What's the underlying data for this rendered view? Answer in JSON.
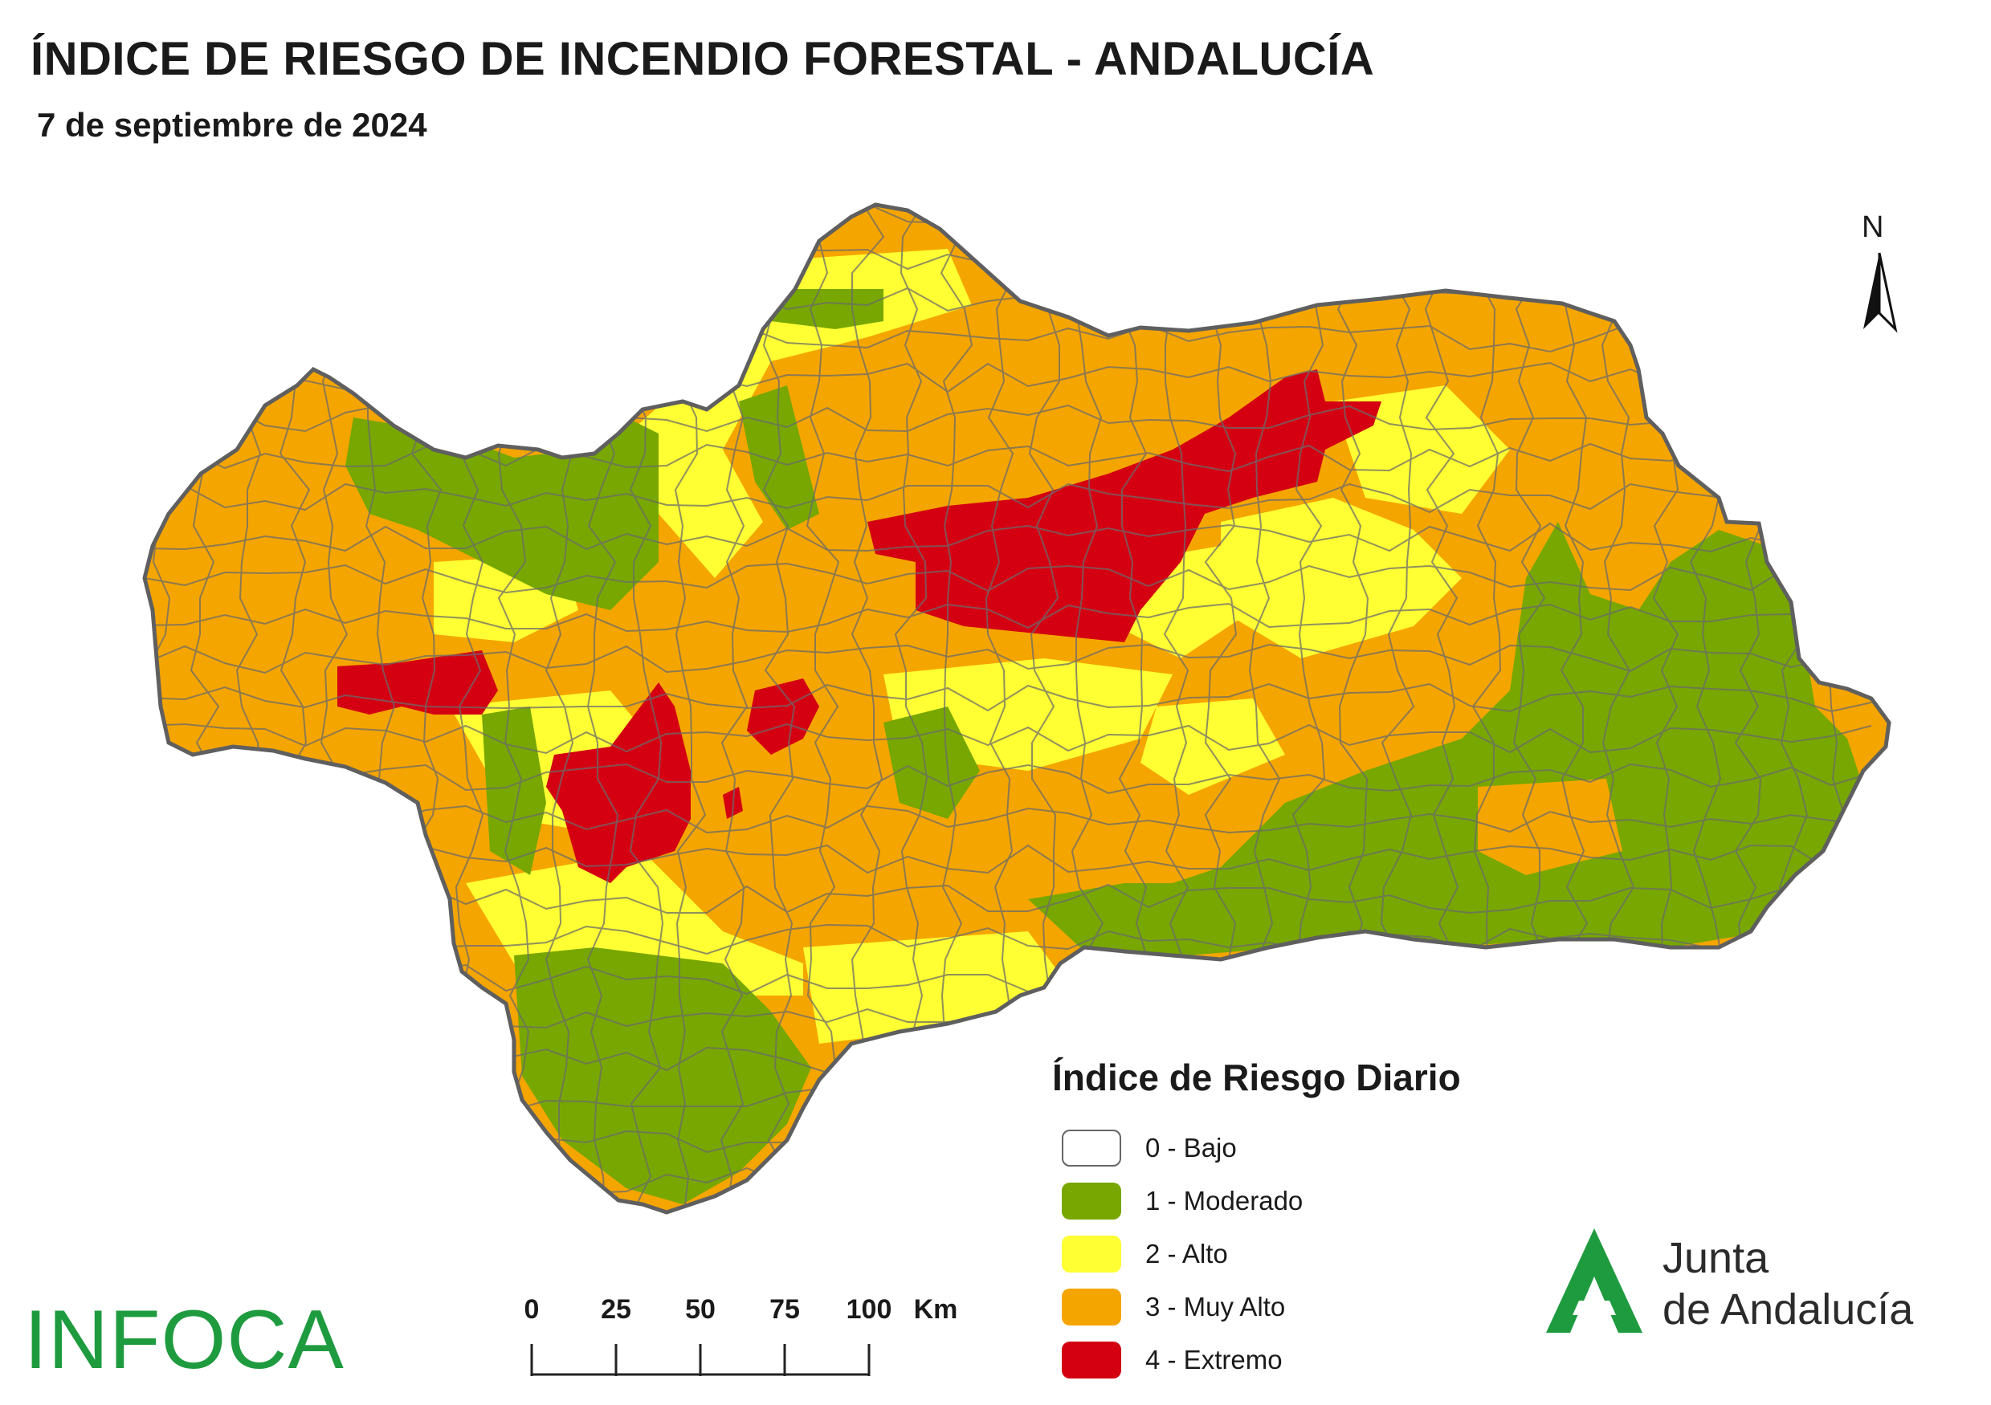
{
  "header": {
    "title": "ÍNDICE DE RIESGO DE INCENDIO FORESTAL - ANDALUCÍA",
    "date": "7 de septiembre de 2024"
  },
  "north_arrow": {
    "label": "N"
  },
  "legend": {
    "title": "Índice de Riesgo Diario",
    "items": [
      {
        "label": "0 - Bajo",
        "color": "#ffffff"
      },
      {
        "label": "1 - Moderado",
        "color": "#77a700"
      },
      {
        "label": "2 - Alto",
        "color": "#ffff33"
      },
      {
        "label": "3 - Muy Alto",
        "color": "#f5a500"
      },
      {
        "label": "4 - Extremo",
        "color": "#d40012"
      }
    ]
  },
  "scale_bar": {
    "ticks": [
      "0",
      "25",
      "50",
      "75",
      "100"
    ],
    "unit": "Km"
  },
  "logos": {
    "infoca": "INFOCA",
    "junta_line1": "Junta",
    "junta_line2": "de Andalucía"
  },
  "colors": {
    "border": "#666666",
    "moderado": "#77a700",
    "alto": "#ffff33",
    "muy_alto": "#f5a500",
    "extremo": "#d40012",
    "junta_green": "#1f9b3f"
  }
}
